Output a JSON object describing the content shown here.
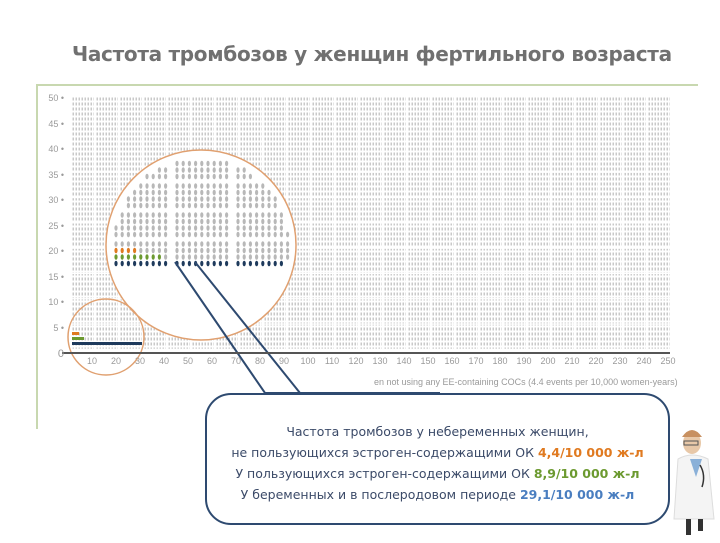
{
  "title": "Частота тромбозов у женщин фертильного возраста",
  "chart_data": {
    "type": "scatter",
    "subtype": "pictogram-grid",
    "title": "Частота тромбозов у женщин фертильного возраста",
    "xlabel": "",
    "ylabel": "",
    "x_ticks": [
      0,
      10,
      20,
      30,
      40,
      50,
      60,
      70,
      80,
      90,
      100,
      110,
      120,
      130,
      140,
      150,
      160,
      170,
      180,
      190,
      200,
      210,
      220,
      230,
      240,
      250
    ],
    "y_ticks": [
      0,
      5,
      10,
      15,
      20,
      25,
      30,
      35,
      40,
      45,
      50
    ],
    "xlim": [
      0,
      250
    ],
    "ylim": [
      0,
      50
    ],
    "caption": "...en not using any EE-containing COCs (4.4 events per 10,000 women-years)",
    "series": [
      {
        "name": "Небеременные, не пользующиеся ЭС-ОК",
        "value": 4.4,
        "unit": "/10 000 ж-л",
        "color": "#e07a20",
        "icons_in_zoom": 4
      },
      {
        "name": "Пользующиеся ЭС-ОК",
        "value": 8.9,
        "unit": "/10 000 ж-л",
        "color": "#6c9a30",
        "icons_in_zoom": 9
      },
      {
        "name": "Беременные и послеродовой период",
        "value": 29.1,
        "unit": "/10 000 ж-л",
        "color": "#1e3a5c",
        "icons_in_zoom": 29
      }
    ],
    "grid": false,
    "legend": "none"
  },
  "axis": {
    "y": [
      "50",
      "45",
      "40",
      "35",
      "30",
      "25",
      "20",
      "15",
      "10",
      "5",
      "0"
    ],
    "x": [
      "10",
      "20",
      "30",
      "40",
      "50",
      "60",
      "70",
      "80",
      "90",
      "100",
      "110",
      "120",
      "130",
      "140",
      "150",
      "160",
      "170",
      "180",
      "190",
      "200",
      "210",
      "220",
      "230",
      "240",
      "250"
    ]
  },
  "caption": "en not using any EE-containing COCs (4.4 events per 10,000 women-years)",
  "bubble": {
    "line1": "Частота тромбозов у небеременных женщин,",
    "line2_prefix": "не пользующихся эстроген-содержащими ОК ",
    "line2_value": "4,4/10 000 ж-л",
    "line3_prefix": "У пользующихся эстроген-содержащими ОК ",
    "line3_value": "8,9/10 000 ж-л",
    "line4_prefix": "У беременных и в послеродовом периоде ",
    "line4_value": "29,1/10 000 ж-л"
  },
  "colors": {
    "orange": "#e07a20",
    "green": "#6c9a30",
    "navy": "#1e3a5c",
    "grey_icon": "#c4c4c4",
    "circle": "#e0a070",
    "bubble_border": "#2e4a70"
  }
}
